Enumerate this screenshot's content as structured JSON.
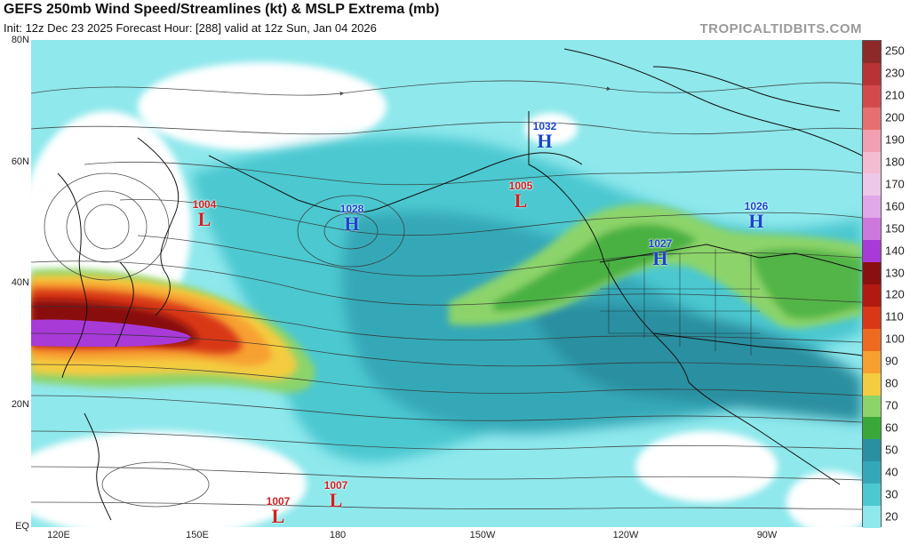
{
  "header": {
    "title": "GEFS 250mb Wind Speed/Streamlines (kt) & MSLP Extrema (mb)",
    "subtitle": "Init: 12z Dec 23 2025   Forecast Hour: [288]   valid at 12z Sun, Jan 04 2026",
    "brand": "TROPICALTIDBITS.COM"
  },
  "axes": {
    "lat_labels": [
      "80N",
      "60N",
      "40N",
      "20N",
      "EQ"
    ],
    "lon_labels": [
      "120E",
      "150E",
      "180",
      "150W",
      "120W",
      "90W"
    ]
  },
  "colorbar": {
    "labels": [
      "250",
      "230",
      "210",
      "200",
      "190",
      "180",
      "170",
      "160",
      "150",
      "140",
      "130",
      "120",
      "110",
      "100",
      "90",
      "80",
      "70",
      "60",
      "50",
      "40",
      "30",
      "20"
    ],
    "colors": [
      "#8c2a2a",
      "#b83434",
      "#d44a4a",
      "#e67070",
      "#f0a0b0",
      "#f4bcd0",
      "#eec8e8",
      "#e0a8e8",
      "#cc78dd",
      "#a83ad8",
      "#8a1010",
      "#b01a10",
      "#d83818",
      "#ee6a20",
      "#f7a030",
      "#f4cc40",
      "#8cd46a",
      "#3aa838",
      "#2a8fa0",
      "#34a8b8",
      "#4cc8d0",
      "#8ee8ec"
    ]
  },
  "pressure_systems": [
    {
      "type": "L",
      "value": "1004",
      "color": "#cc2222"
    },
    {
      "type": "H",
      "value": "1028",
      "color": "#1a44cc"
    },
    {
      "type": "H",
      "value": "1032",
      "color": "#1a44cc"
    },
    {
      "type": "L",
      "value": "1005",
      "color": "#cc2222"
    },
    {
      "type": "H",
      "value": "1027",
      "color": "#1a44cc"
    },
    {
      "type": "H",
      "value": "1026",
      "color": "#1a44cc"
    },
    {
      "type": "L",
      "value": "1007",
      "color": "#cc2222"
    },
    {
      "type": "L",
      "value": "1007",
      "color": "#cc2222"
    }
  ]
}
